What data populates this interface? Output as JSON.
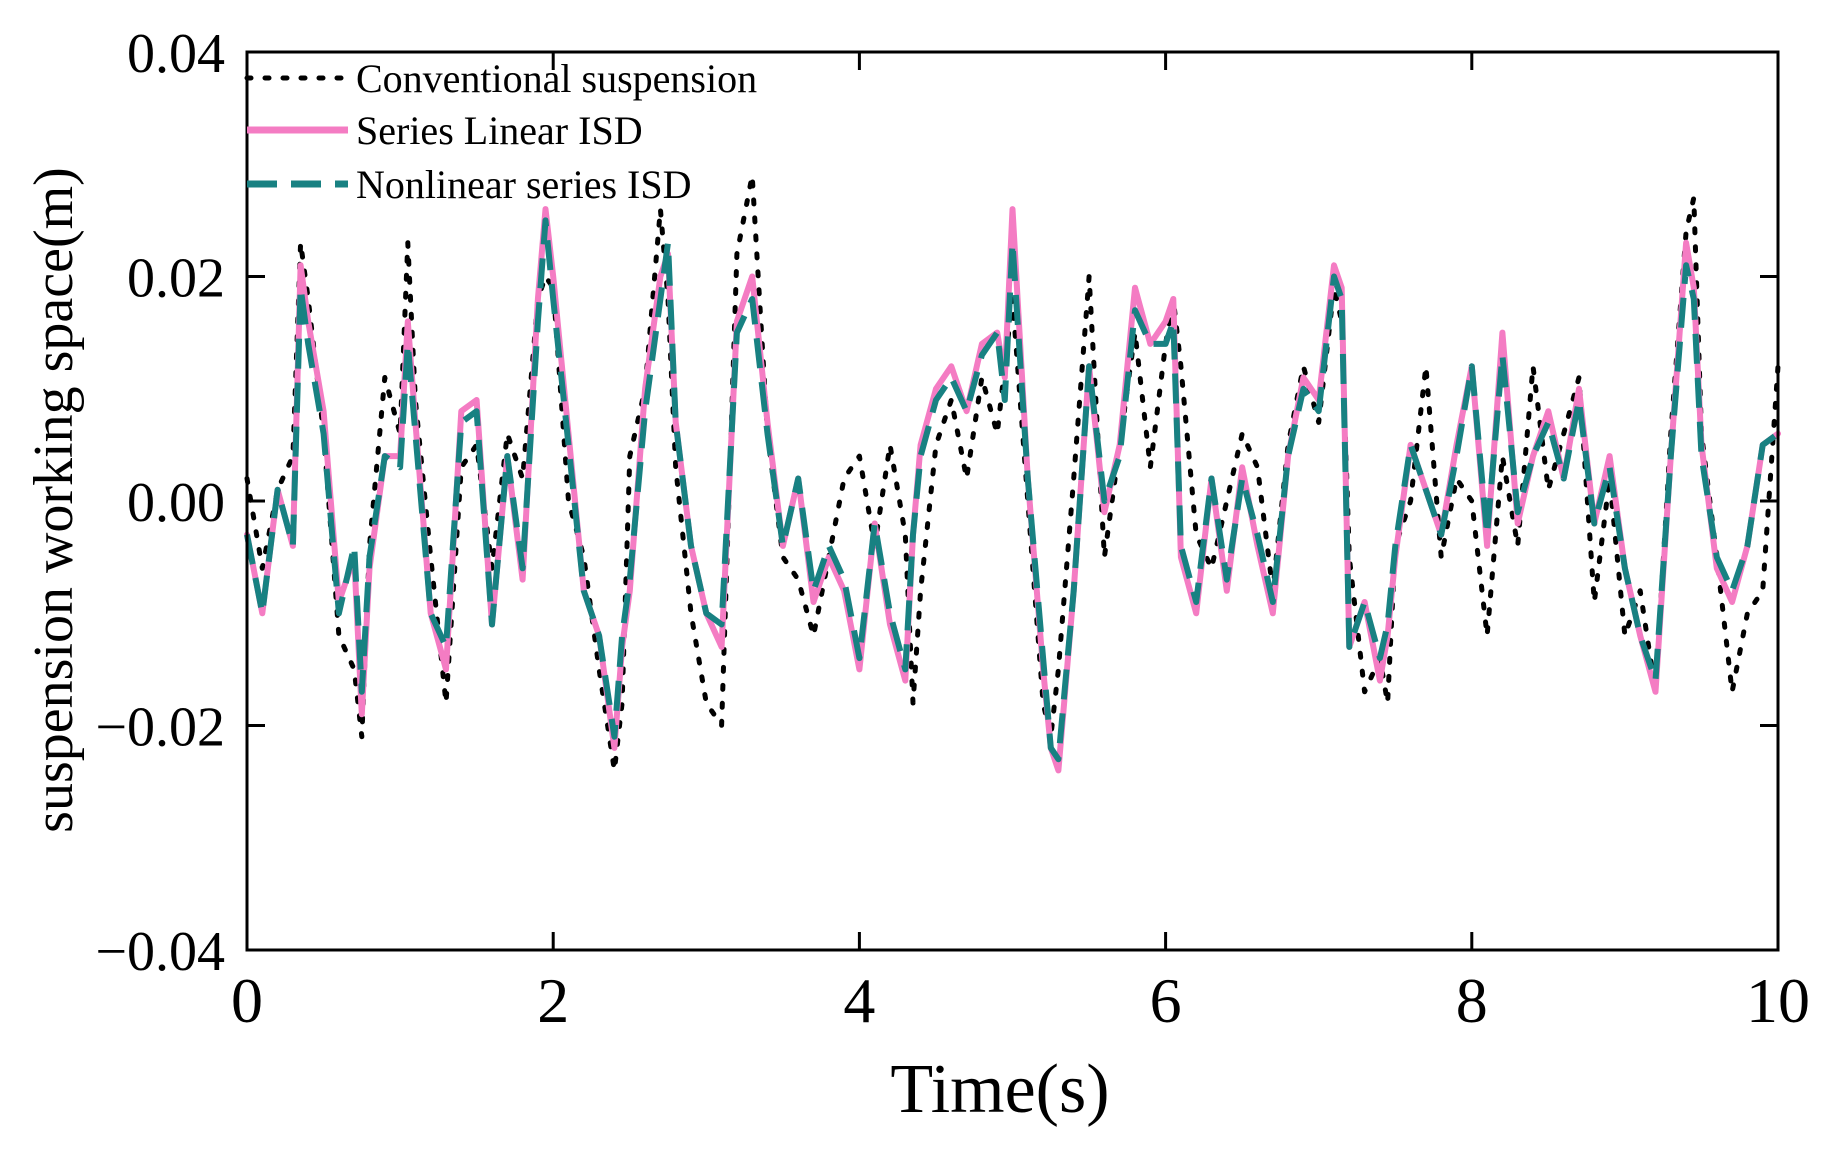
{
  "chart_data": {
    "type": "line",
    "title": "",
    "xlabel": "Time(s)",
    "ylabel": "suspension working space(m)",
    "xlim": [
      0,
      10
    ],
    "ylim": [
      -0.04,
      0.04
    ],
    "xticks": [
      0,
      2,
      4,
      6,
      8,
      10
    ],
    "xtick_labels": [
      "0",
      "2",
      "4",
      "6",
      "8",
      "10"
    ],
    "yticks": [
      -0.04,
      -0.02,
      0.0,
      0.02,
      0.04
    ],
    "ytick_labels": [
      "−0.04",
      "−0.02",
      "0.00",
      "0.02",
      "0.04"
    ],
    "grid": false,
    "legend_position": "top-left",
    "x": [
      0,
      0.1,
      0.2,
      0.3,
      0.35,
      0.4,
      0.5,
      0.6,
      0.7,
      0.75,
      0.8,
      0.9,
      1.0,
      1.05,
      1.1,
      1.2,
      1.3,
      1.4,
      1.5,
      1.6,
      1.7,
      1.8,
      1.9,
      1.95,
      2.0,
      2.1,
      2.2,
      2.3,
      2.4,
      2.45,
      2.5,
      2.6,
      2.7,
      2.75,
      2.8,
      2.9,
      3.0,
      3.1,
      3.2,
      3.3,
      3.4,
      3.5,
      3.6,
      3.7,
      3.8,
      3.9,
      4.0,
      4.1,
      4.2,
      4.3,
      4.35,
      4.4,
      4.5,
      4.6,
      4.7,
      4.8,
      4.9,
      4.95,
      5.0,
      5.1,
      5.2,
      5.25,
      5.3,
      5.4,
      5.5,
      5.6,
      5.7,
      5.8,
      5.9,
      6.0,
      6.05,
      6.1,
      6.2,
      6.3,
      6.4,
      6.5,
      6.6,
      6.7,
      6.8,
      6.9,
      7.0,
      7.1,
      7.15,
      7.2,
      7.3,
      7.4,
      7.45,
      7.5,
      7.6,
      7.7,
      7.8,
      7.9,
      8.0,
      8.1,
      8.2,
      8.3,
      8.4,
      8.5,
      8.6,
      8.7,
      8.8,
      8.9,
      9.0,
      9.1,
      9.2,
      9.3,
      9.4,
      9.45,
      9.5,
      9.6,
      9.7,
      9.8,
      9.9,
      10.0
    ],
    "series": [
      {
        "name": "Conventional suspension",
        "color": "#000000",
        "style": "dotted",
        "values": [
          0.002,
          -0.006,
          0.001,
          0.004,
          0.023,
          0.018,
          0.006,
          -0.012,
          -0.015,
          -0.021,
          -0.004,
          0.011,
          0.006,
          0.023,
          0.009,
          -0.005,
          -0.018,
          0.003,
          0.005,
          -0.006,
          0.006,
          0.002,
          0.018,
          0.02,
          0.019,
          0.0,
          -0.005,
          -0.015,
          -0.024,
          -0.018,
          0.004,
          0.01,
          0.026,
          0.018,
          0.003,
          -0.01,
          -0.018,
          -0.02,
          0.022,
          0.029,
          0.006,
          -0.005,
          -0.007,
          -0.012,
          -0.005,
          0.002,
          0.004,
          -0.004,
          0.005,
          -0.003,
          -0.018,
          -0.008,
          0.005,
          0.009,
          0.002,
          0.011,
          0.006,
          0.012,
          0.018,
          0.0,
          -0.018,
          -0.021,
          -0.015,
          0.002,
          0.02,
          -0.005,
          0.005,
          0.015,
          0.003,
          0.014,
          0.018,
          0.012,
          -0.003,
          -0.006,
          0.0,
          0.006,
          0.003,
          -0.008,
          0.005,
          0.012,
          0.007,
          0.019,
          0.016,
          -0.005,
          -0.017,
          -0.014,
          -0.018,
          -0.004,
          0.0,
          0.012,
          -0.005,
          0.002,
          0.0,
          -0.012,
          0.004,
          -0.004,
          0.012,
          0.001,
          0.006,
          0.011,
          -0.009,
          0.002,
          -0.012,
          -0.008,
          -0.017,
          0.006,
          0.024,
          0.027,
          0.006,
          -0.005,
          -0.017,
          -0.01,
          -0.008,
          0.012
        ]
      },
      {
        "name": "Series Linear ISD",
        "color": "#f47cc3",
        "style": "solid",
        "values": [
          -0.003,
          -0.01,
          0.001,
          -0.004,
          0.021,
          0.016,
          0.008,
          -0.009,
          -0.005,
          -0.019,
          -0.006,
          0.004,
          0.004,
          0.016,
          0.007,
          -0.01,
          -0.015,
          0.008,
          0.009,
          -0.011,
          0.004,
          -0.007,
          0.018,
          0.026,
          0.02,
          0.006,
          -0.008,
          -0.012,
          -0.022,
          -0.013,
          -0.008,
          0.01,
          0.02,
          0.022,
          0.007,
          -0.004,
          -0.01,
          -0.013,
          0.016,
          0.02,
          0.007,
          -0.004,
          0.002,
          -0.009,
          -0.005,
          -0.008,
          -0.015,
          -0.002,
          -0.011,
          -0.016,
          -0.003,
          0.005,
          0.01,
          0.012,
          0.008,
          0.014,
          0.015,
          0.011,
          0.026,
          0.002,
          -0.015,
          -0.022,
          -0.024,
          -0.008,
          0.012,
          -0.001,
          0.005,
          0.019,
          0.014,
          0.016,
          0.018,
          -0.005,
          -0.01,
          0.002,
          -0.008,
          0.003,
          -0.004,
          -0.01,
          0.004,
          0.011,
          0.009,
          0.021,
          0.019,
          -0.013,
          -0.009,
          -0.016,
          -0.012,
          -0.005,
          0.005,
          0.001,
          -0.003,
          0.005,
          0.012,
          -0.004,
          0.015,
          -0.002,
          0.004,
          0.008,
          0.002,
          0.01,
          -0.002,
          0.004,
          -0.006,
          -0.012,
          -0.017,
          0.004,
          0.023,
          0.019,
          0.005,
          -0.006,
          -0.009,
          -0.004,
          0.005,
          0.006
        ]
      },
      {
        "name": "Nonlinear series ISD",
        "color": "#188182",
        "style": "dashed",
        "values": [
          -0.003,
          -0.01,
          0.001,
          -0.004,
          0.019,
          0.014,
          0.006,
          -0.01,
          -0.004,
          -0.017,
          -0.005,
          0.004,
          0.003,
          0.014,
          0.006,
          -0.01,
          -0.013,
          0.007,
          0.008,
          -0.011,
          0.004,
          -0.006,
          0.016,
          0.025,
          0.018,
          0.005,
          -0.008,
          -0.012,
          -0.021,
          -0.012,
          -0.007,
          0.008,
          0.018,
          0.023,
          0.007,
          -0.004,
          -0.01,
          -0.011,
          0.015,
          0.018,
          0.006,
          -0.004,
          0.002,
          -0.008,
          -0.004,
          -0.007,
          -0.014,
          -0.002,
          -0.01,
          -0.015,
          -0.003,
          0.004,
          0.009,
          0.011,
          0.008,
          0.013,
          0.015,
          0.009,
          0.023,
          0.002,
          -0.014,
          -0.022,
          -0.023,
          -0.008,
          0.012,
          0.0,
          0.004,
          0.017,
          0.014,
          0.014,
          0.016,
          -0.004,
          -0.009,
          0.002,
          -0.007,
          0.002,
          -0.003,
          -0.009,
          0.004,
          0.01,
          0.008,
          0.02,
          0.018,
          -0.013,
          -0.009,
          -0.014,
          -0.011,
          -0.004,
          0.005,
          0.001,
          -0.003,
          0.004,
          0.012,
          -0.003,
          0.013,
          -0.001,
          0.004,
          0.007,
          0.002,
          0.009,
          -0.002,
          0.003,
          -0.006,
          -0.012,
          -0.016,
          0.004,
          0.021,
          0.018,
          0.004,
          -0.005,
          -0.008,
          -0.004,
          0.005,
          0.006
        ]
      }
    ]
  }
}
